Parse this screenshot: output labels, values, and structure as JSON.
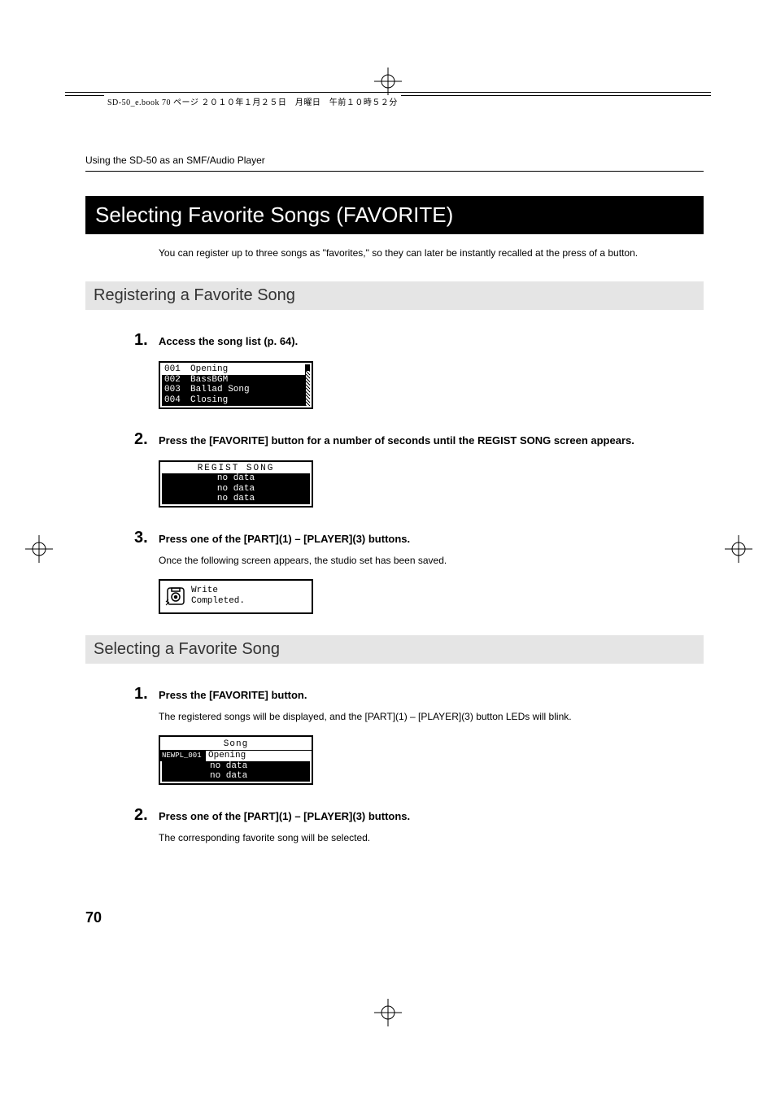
{
  "header_text": "SD-50_e.book  70 ページ  ２０１０年１月２５日　月曜日　午前１０時５２分",
  "breadcrumb": "Using the SD-50 as an SMF/Audio Player",
  "h1": "Selecting Favorite Songs (FAVORITE)",
  "intro": "You can register up to three songs as \"favorites,\" so they can later be instantly recalled at the press of a button.",
  "section1": {
    "title": "Registering a Favorite Song",
    "steps": [
      {
        "num": "1.",
        "title": "Access the song list (p. 64).",
        "lcd": {
          "type": "songlist",
          "rows": [
            {
              "idx": "001",
              "name": "Opening",
              "selected": true
            },
            {
              "idx": "002",
              "name": "BassBGM",
              "selected": false
            },
            {
              "idx": "003",
              "name": "Ballad Song",
              "selected": false
            },
            {
              "idx": "004",
              "name": "Closing",
              "selected": false
            }
          ]
        }
      },
      {
        "num": "2.",
        "title": "Press the [FAVORITE] button for a number of seconds until the REGIST SONG screen appears.",
        "lcd": {
          "type": "regist",
          "title": "REGIST SONG",
          "rows": [
            "no data",
            "no data",
            "no data"
          ]
        }
      },
      {
        "num": "3.",
        "title": "Press one of the [PART](1) – [PLAYER](3) buttons.",
        "desc": "Once the following screen appears, the studio set has been saved.",
        "lcd": {
          "type": "write",
          "line1": "Write",
          "line2": "Completed."
        }
      }
    ]
  },
  "section2": {
    "title": "Selecting a Favorite Song",
    "steps": [
      {
        "num": "1.",
        "title": "Press the [FAVORITE] button.",
        "desc": "The registered songs will be displayed, and the [PART](1) – [PLAYER](3) button LEDs will blink.",
        "lcd": {
          "type": "song",
          "header": "Song",
          "rows": [
            {
              "label": "NEWPL_001",
              "value": "Opening",
              "inv": true
            },
            {
              "label": "",
              "value": "no data",
              "inv": false
            },
            {
              "label": "",
              "value": "no data",
              "inv": false
            }
          ]
        }
      },
      {
        "num": "2.",
        "title": "Press one of the [PART](1) – [PLAYER](3) buttons.",
        "desc": "The corresponding favorite song will be selected."
      }
    ]
  },
  "page_number": "70",
  "colors": {
    "bg": "#ffffff",
    "text": "#000000",
    "h2_bg": "#e5e5e5"
  }
}
